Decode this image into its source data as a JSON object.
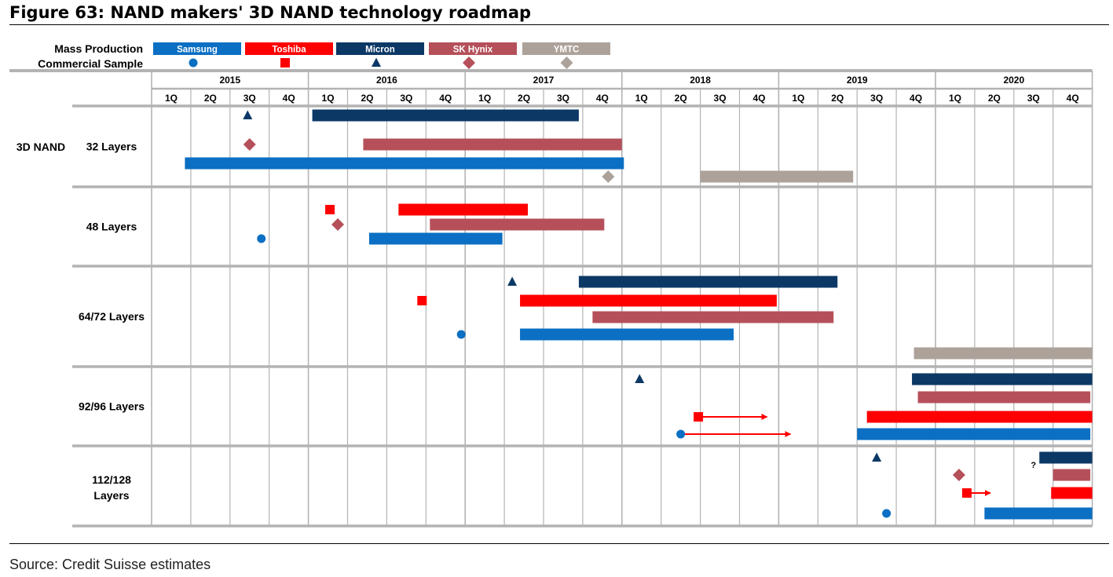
{
  "title": "Figure 63: NAND makers' 3D NAND technology roadmap",
  "source": "Source: Credit Suisse estimates",
  "legend": {
    "mass_production_label": "Mass Production",
    "commercial_sample_label": "Commercial Sample"
  },
  "colors": {
    "Samsung": "#0B6FC3",
    "Toshiba": "#FF0000",
    "Micron": "#0C3866",
    "SK Hynix": "#B5505A",
    "YMTC": "#ADA29A",
    "grid": "#B3B3B3"
  },
  "chart_data": {
    "type": "gantt",
    "section_label": "3D NAND",
    "years": [
      "2015",
      "2016",
      "2017",
      "2018",
      "2019",
      "2020"
    ],
    "quarters": [
      "1Q",
      "2Q",
      "3Q",
      "4Q"
    ],
    "time_unit": "quarter index (0 = 1Q 2015, 24 = end of 4Q 2020)",
    "companies": [
      {
        "name": "Samsung",
        "sample_marker": "circle"
      },
      {
        "name": "Toshiba",
        "sample_marker": "square"
      },
      {
        "name": "Micron",
        "sample_marker": "triangle"
      },
      {
        "name": "SK Hynix",
        "sample_marker": "diamond"
      },
      {
        "name": "YMTC",
        "sample_marker": "diamond"
      }
    ],
    "rows": [
      {
        "label": "32 Layers",
        "mass_production": [
          {
            "company": "Micron",
            "start": 4.1,
            "end": 10.9
          },
          {
            "company": "SK Hynix",
            "start": 5.4,
            "end": 12.0
          },
          {
            "company": "Samsung",
            "start": 0.85,
            "end": 12.05
          },
          {
            "company": "YMTC",
            "start": 14.0,
            "end": 17.9
          }
        ],
        "samples": [
          {
            "company": "Micron",
            "at": 2.45
          },
          {
            "company": "SK Hynix",
            "at": 2.5
          },
          {
            "company": "YMTC",
            "at": 11.65
          }
        ]
      },
      {
        "label": "48 Layers",
        "mass_production": [
          {
            "company": "Toshiba",
            "start": 6.3,
            "end": 9.6
          },
          {
            "company": "SK Hynix",
            "start": 7.1,
            "end": 11.55
          },
          {
            "company": "Samsung",
            "start": 5.55,
            "end": 8.95
          }
        ],
        "samples": [
          {
            "company": "Toshiba",
            "at": 4.55
          },
          {
            "company": "SK Hynix",
            "at": 4.75
          },
          {
            "company": "Samsung",
            "at": 2.8
          }
        ]
      },
      {
        "label": "64/72 Layers",
        "mass_production": [
          {
            "company": "Micron",
            "start": 10.9,
            "end": 17.5
          },
          {
            "company": "Toshiba",
            "start": 9.4,
            "end": 15.95
          },
          {
            "company": "SK Hynix",
            "start": 11.25,
            "end": 17.4
          },
          {
            "company": "Samsung",
            "start": 9.4,
            "end": 14.85
          },
          {
            "company": "YMTC",
            "start": 19.45,
            "end": 24.0
          }
        ],
        "samples": [
          {
            "company": "Micron",
            "at": 9.2
          },
          {
            "company": "Toshiba",
            "at": 6.9
          },
          {
            "company": "Samsung",
            "at": 7.9
          }
        ]
      },
      {
        "label": "92/96 Layers",
        "mass_production": [
          {
            "company": "Micron",
            "start": 19.4,
            "end": 24.0
          },
          {
            "company": "SK Hynix",
            "start": 19.55,
            "end": 23.95
          },
          {
            "company": "Toshiba",
            "start": 18.25,
            "end": 24.0
          },
          {
            "company": "Samsung",
            "start": 18.0,
            "end": 23.95
          }
        ],
        "samples": [
          {
            "company": "Micron",
            "at": 12.45
          },
          {
            "company": "Toshiba",
            "at": 13.95,
            "arrow_to": 15.7
          },
          {
            "company": "Samsung",
            "at": 13.5,
            "arrow_to": 16.3
          }
        ]
      },
      {
        "label": "112/128 Layers",
        "note": "?",
        "mass_production": [
          {
            "company": "Micron",
            "start": 22.65,
            "end": 24.0
          },
          {
            "company": "SK Hynix",
            "start": 23.0,
            "end": 23.95
          },
          {
            "company": "Toshiba",
            "start": 22.95,
            "end": 24.0
          },
          {
            "company": "Samsung",
            "start": 21.25,
            "end": 24.0
          }
        ],
        "samples": [
          {
            "company": "Micron",
            "at": 18.5
          },
          {
            "company": "SK Hynix",
            "at": 20.6
          },
          {
            "company": "Toshiba",
            "at": 20.8,
            "arrow_to": 21.4
          },
          {
            "company": "Samsung",
            "at": 18.75
          }
        ]
      }
    ]
  }
}
